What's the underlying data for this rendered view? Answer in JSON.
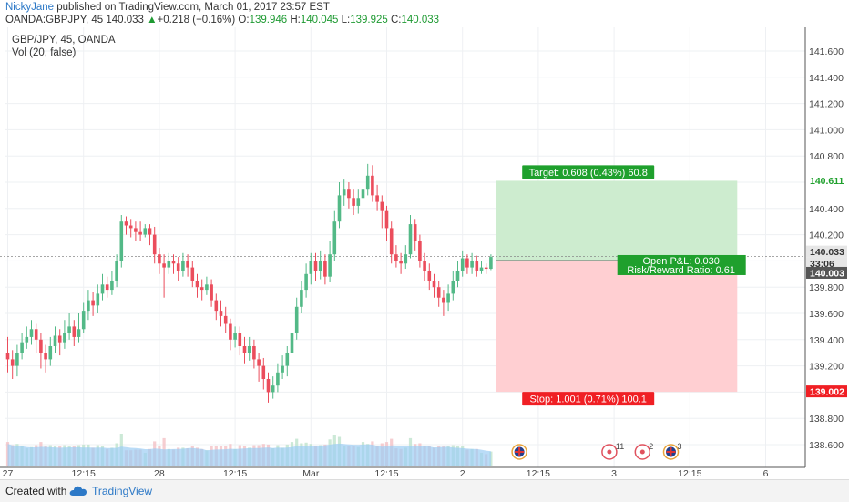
{
  "header": {
    "author": "NickyJane",
    "published_text": "published on TradingView.com, March 01, 2017 23:57 EST",
    "symbol": "OANDA:GBPJPY, 45",
    "last": "140.033",
    "change_arrow": "▲",
    "change": "+0.218 (+0.16%)",
    "o_label": "O:",
    "o_value": "139.946",
    "h_label": "H:",
    "h_value": "140.045",
    "l_label": "L:",
    "l_value": "139.925",
    "c_label": "C:",
    "c_value": "140.033"
  },
  "chart_data": {
    "type": "candlestick",
    "title": "GBP/JPY, 45, OANDA",
    "indicator_label": "Vol (20, false)",
    "ylim": [
      138.45,
      141.7
    ],
    "y_ticks": [
      "141.600",
      "141.400",
      "141.200",
      "141.000",
      "140.800",
      "140.600",
      "140.400",
      "140.200",
      "140.000",
      "139.800",
      "139.600",
      "139.400",
      "139.200",
      "139.000",
      "138.800",
      "138.600"
    ],
    "x_ticks": [
      {
        "label": "27",
        "bar": 0
      },
      {
        "label": "12:15",
        "bar": 16
      },
      {
        "label": "28",
        "bar": 32
      },
      {
        "label": "12:15",
        "bar": 48
      },
      {
        "label": "Mar",
        "bar": 64
      },
      {
        "label": "12:15",
        "bar": 80
      },
      {
        "label": "2",
        "bar": 96
      },
      {
        "label": "12:15",
        "bar": 112
      },
      {
        "label": "3",
        "bar": 128
      },
      {
        "label": "12:15",
        "bar": 144
      },
      {
        "label": "6",
        "bar": 160
      }
    ],
    "candles": [
      [
        139.3,
        139.25,
        139.42,
        139.15
      ],
      [
        139.25,
        139.2,
        139.32,
        139.1
      ],
      [
        139.2,
        139.3,
        139.36,
        139.12
      ],
      [
        139.3,
        139.38,
        139.45,
        139.25
      ],
      [
        139.38,
        139.42,
        139.5,
        139.33
      ],
      [
        139.42,
        139.48,
        139.55,
        139.36
      ],
      [
        139.48,
        139.4,
        139.52,
        139.3
      ],
      [
        139.4,
        139.3,
        139.45,
        139.18
      ],
      [
        139.3,
        139.25,
        139.36,
        139.15
      ],
      [
        139.25,
        139.35,
        139.42,
        139.2
      ],
      [
        139.35,
        139.43,
        139.5,
        139.3
      ],
      [
        139.43,
        139.38,
        139.48,
        139.28
      ],
      [
        139.38,
        139.45,
        139.55,
        139.33
      ],
      [
        139.45,
        139.5,
        139.6,
        139.4
      ],
      [
        139.5,
        139.42,
        139.55,
        139.35
      ],
      [
        139.42,
        139.48,
        139.6,
        139.38
      ],
      [
        139.48,
        139.62,
        139.68,
        139.45
      ],
      [
        139.62,
        139.7,
        139.78,
        139.55
      ],
      [
        139.7,
        139.66,
        139.76,
        139.58
      ],
      [
        139.66,
        139.75,
        139.82,
        139.6
      ],
      [
        139.75,
        139.82,
        139.9,
        139.7
      ],
      [
        139.82,
        139.78,
        139.88,
        139.72
      ],
      [
        139.78,
        139.85,
        139.92,
        139.74
      ],
      [
        139.85,
        140.0,
        140.05,
        139.8
      ],
      [
        140.0,
        140.3,
        140.35,
        139.95
      ],
      [
        140.3,
        140.27,
        140.34,
        140.2
      ],
      [
        140.27,
        140.25,
        140.32,
        140.18
      ],
      [
        140.25,
        140.22,
        140.3,
        140.15
      ],
      [
        140.22,
        140.2,
        140.3,
        140.15
      ],
      [
        140.2,
        140.25,
        140.28,
        140.18
      ],
      [
        140.25,
        140.2,
        140.28,
        140.12
      ],
      [
        140.2,
        140.05,
        140.26,
        139.98
      ],
      [
        140.05,
        139.98,
        140.1,
        139.9
      ],
      [
        139.98,
        139.95,
        140.05,
        139.72
      ],
      [
        139.95,
        140.0,
        140.06,
        139.9
      ],
      [
        140.0,
        139.98,
        140.05,
        139.9
      ],
      [
        139.98,
        139.92,
        140.03,
        139.85
      ],
      [
        139.92,
        140.0,
        140.06,
        139.88
      ],
      [
        140.0,
        139.95,
        140.05,
        139.88
      ],
      [
        139.95,
        139.85,
        140.0,
        139.8
      ],
      [
        139.85,
        139.8,
        139.9,
        139.72
      ],
      [
        139.8,
        139.78,
        139.86,
        139.7
      ],
      [
        139.78,
        139.82,
        139.88,
        139.74
      ],
      [
        139.82,
        139.7,
        139.86,
        139.65
      ],
      [
        139.7,
        139.62,
        139.75,
        139.55
      ],
      [
        139.62,
        139.58,
        139.7,
        139.5
      ],
      [
        139.58,
        139.52,
        139.65,
        139.45
      ],
      [
        139.52,
        139.4,
        139.56,
        139.32
      ],
      [
        139.4,
        139.45,
        139.5,
        139.34
      ],
      [
        139.45,
        139.35,
        139.5,
        139.28
      ],
      [
        139.35,
        139.3,
        139.42,
        139.22
      ],
      [
        139.3,
        139.35,
        139.42,
        139.24
      ],
      [
        139.35,
        139.25,
        139.4,
        139.18
      ],
      [
        139.25,
        139.2,
        139.3,
        139.08
      ],
      [
        139.2,
        139.1,
        139.26,
        139.02
      ],
      [
        139.1,
        139.0,
        139.15,
        138.92
      ],
      [
        139.0,
        139.05,
        139.12,
        138.95
      ],
      [
        139.05,
        139.15,
        139.22,
        139.0
      ],
      [
        139.15,
        139.2,
        139.28,
        139.1
      ],
      [
        139.2,
        139.3,
        139.35,
        139.12
      ],
      [
        139.3,
        139.45,
        139.52,
        139.25
      ],
      [
        139.45,
        139.65,
        139.72,
        139.4
      ],
      [
        139.65,
        139.78,
        139.85,
        139.6
      ],
      [
        139.78,
        139.9,
        139.98,
        139.72
      ],
      [
        139.9,
        140.0,
        140.06,
        139.82
      ],
      [
        140.0,
        139.92,
        140.06,
        139.85
      ],
      [
        139.92,
        140.0,
        140.08,
        139.86
      ],
      [
        140.0,
        139.88,
        140.05,
        139.82
      ],
      [
        139.88,
        140.05,
        140.15,
        139.84
      ],
      [
        140.05,
        140.3,
        140.38,
        140.0
      ],
      [
        140.3,
        140.5,
        140.6,
        140.25
      ],
      [
        140.5,
        140.55,
        140.62,
        140.42
      ],
      [
        140.55,
        140.48,
        140.6,
        140.4
      ],
      [
        140.48,
        140.42,
        140.55,
        140.35
      ],
      [
        140.42,
        140.48,
        140.55,
        140.36
      ],
      [
        140.48,
        140.55,
        140.72,
        140.45
      ],
      [
        140.55,
        140.65,
        140.74,
        140.5
      ],
      [
        140.65,
        140.5,
        140.73,
        140.45
      ],
      [
        140.5,
        140.45,
        140.58,
        140.38
      ],
      [
        140.45,
        140.38,
        140.5,
        140.25
      ],
      [
        140.38,
        140.25,
        140.42,
        140.15
      ],
      [
        140.25,
        140.05,
        140.3,
        139.98
      ],
      [
        140.05,
        140.0,
        140.12,
        139.95
      ],
      [
        140.0,
        139.98,
        140.06,
        139.9
      ],
      [
        139.98,
        140.05,
        140.12,
        139.94
      ],
      [
        140.05,
        140.28,
        140.35,
        140.02
      ],
      [
        140.28,
        140.15,
        140.32,
        140.08
      ],
      [
        140.15,
        140.0,
        140.2,
        139.95
      ],
      [
        140.0,
        139.92,
        140.06,
        139.85
      ],
      [
        139.92,
        139.85,
        139.98,
        139.78
      ],
      [
        139.85,
        139.8,
        139.9,
        139.72
      ],
      [
        139.8,
        139.72,
        139.85,
        139.65
      ],
      [
        139.72,
        139.68,
        139.78,
        139.58
      ],
      [
        139.68,
        139.75,
        139.82,
        139.62
      ],
      [
        139.75,
        139.85,
        139.92,
        139.7
      ],
      [
        139.85,
        139.92,
        140.0,
        139.8
      ],
      [
        139.92,
        140.02,
        140.08,
        139.88
      ],
      [
        140.02,
        139.95,
        140.05,
        139.9
      ],
      [
        139.95,
        140.0,
        140.06,
        139.9
      ],
      [
        140.0,
        139.92,
        140.04,
        139.88
      ],
      [
        139.92,
        139.95,
        140.0,
        139.9
      ],
      [
        139.95,
        139.94,
        139.98,
        139.9
      ],
      [
        139.94,
        140.03,
        140.05,
        139.93
      ]
    ],
    "position": {
      "entry": 140.003,
      "target": 140.611,
      "stop": 139.002,
      "start_bar": 103,
      "end_bar": 154,
      "target_label": "Target: 0.608 (0.43%) 60.8",
      "stop_label": "Stop: 1.001 (0.71%) 100.1",
      "pnl_label": "Open P&L: 0.030",
      "rr_label": "Risk/Reward Ratio: 0.61"
    },
    "price_labels": {
      "last": "140.033",
      "countdown": "33:06",
      "entry": "140.003",
      "target": "140.611",
      "stop": "139.002"
    },
    "events": [
      {
        "bar": 108,
        "type": "uk-flag"
      },
      {
        "bar": 127,
        "type": "alert",
        "label": "11"
      },
      {
        "bar": 134,
        "type": "alert",
        "label": "2"
      },
      {
        "bar": 140,
        "type": "uk-flag",
        "label": "3"
      }
    ],
    "colors": {
      "up": "#53b987",
      "down": "#eb4d5c",
      "volume": "#9ccdf3",
      "target_zone": "#cdeccf",
      "stop_zone": "#ffcfd2",
      "target_label": "#1fa02d",
      "stop_label": "#f01f24"
    }
  },
  "footer": {
    "created_with": "Created with",
    "brand": "TradingView"
  }
}
